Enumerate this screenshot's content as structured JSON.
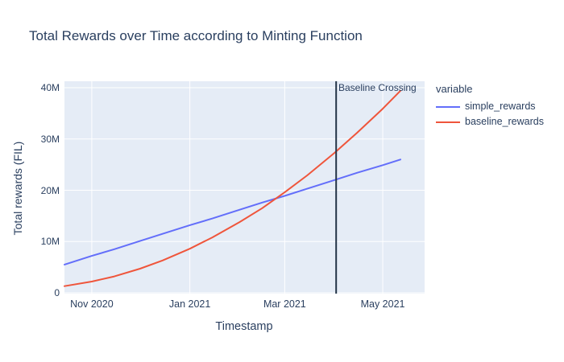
{
  "chart_data": {
    "type": "line",
    "title": "Total Rewards over Time according to Minting Function",
    "xlabel": "Timestamp",
    "ylabel": "Total rewards (FIL)",
    "legend_title": "variable",
    "legend_position": "right",
    "grid": true,
    "plot_bg": "#e5ecf6",
    "grid_color": "#ffffff",
    "text_color": "#2a3f5f",
    "ylim_millions": [
      0,
      41.4
    ],
    "x": [
      "2020-10-15",
      "2020-11-01",
      "2020-11-15",
      "2020-12-01",
      "2020-12-15",
      "2021-01-01",
      "2021-01-15",
      "2021-02-01",
      "2021-02-15",
      "2021-03-01",
      "2021-03-15",
      "2021-04-01",
      "2021-04-15",
      "2021-05-01",
      "2021-05-12"
    ],
    "t_days": [
      0,
      17,
      31,
      47,
      61,
      78,
      92,
      109,
      123,
      137,
      151,
      168,
      182,
      198,
      209
    ],
    "series": [
      {
        "name": "simple_rewards",
        "color": "#636efa",
        "values_millions": [
          5.5,
          7.2,
          8.5,
          10.1,
          11.5,
          13.2,
          14.5,
          16.2,
          17.6,
          18.9,
          20.3,
          22.0,
          23.4,
          24.9,
          26.0
        ]
      },
      {
        "name": "baseline_rewards",
        "color": "#EF553B",
        "values_millions": [
          1.3,
          2.2,
          3.2,
          4.7,
          6.3,
          8.6,
          10.8,
          13.8,
          16.5,
          19.6,
          22.9,
          27.3,
          31.2,
          35.9,
          39.4
        ]
      }
    ],
    "yticks": [
      {
        "label": "0",
        "value_millions": 0
      },
      {
        "label": "10M",
        "value_millions": 10
      },
      {
        "label": "20M",
        "value_millions": 20
      },
      {
        "label": "30M",
        "value_millions": 30
      },
      {
        "label": "40M",
        "value_millions": 40
      }
    ],
    "xticks": [
      {
        "label": "Nov 2020",
        "t": 17
      },
      {
        "label": "Jan 2021",
        "t": 78
      },
      {
        "label": "Mar 2021",
        "t": 137
      },
      {
        "label": "May 2021",
        "t": 198
      }
    ],
    "vline": {
      "t": 169,
      "color": "#243447",
      "annotation": "Baseline Crossing"
    }
  }
}
